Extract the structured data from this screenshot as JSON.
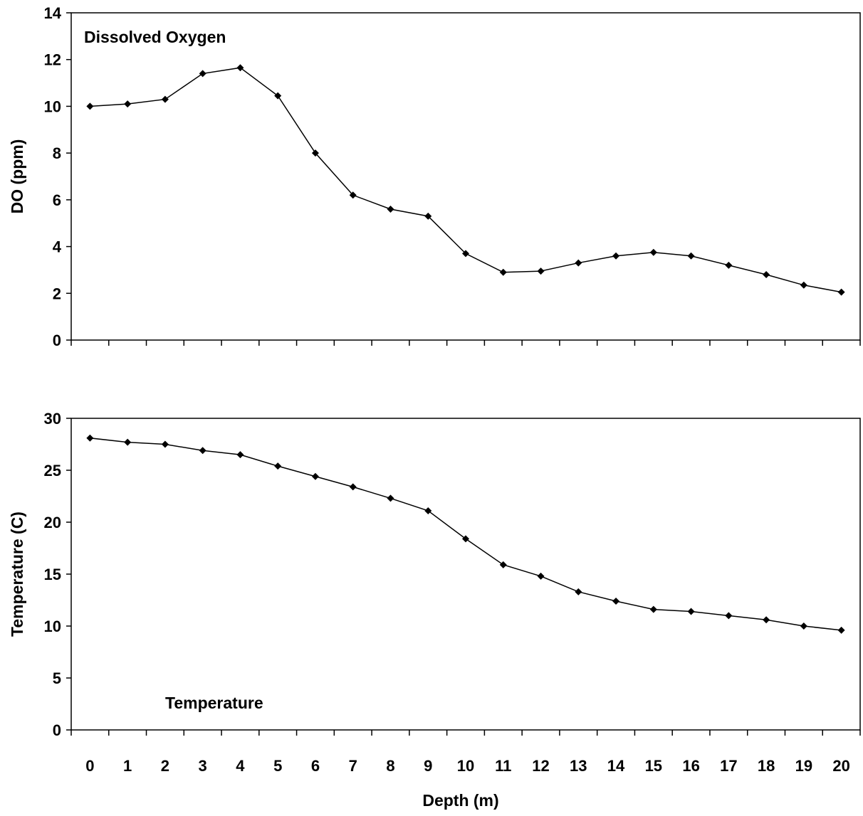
{
  "chart_data": [
    {
      "type": "line",
      "panel_label": "Dissolved Oxygen",
      "ylabel": "DO (ppm)",
      "xlabel": "",
      "ylim": [
        0,
        14
      ],
      "yticks": [
        0,
        2,
        4,
        6,
        8,
        10,
        12,
        14
      ],
      "x": [
        0,
        1,
        2,
        3,
        4,
        5,
        6,
        7,
        8,
        9,
        10,
        11,
        12,
        13,
        14,
        15,
        16,
        17,
        18,
        19,
        20
      ],
      "values": [
        10.0,
        10.1,
        10.3,
        11.4,
        11.65,
        10.45,
        8.0,
        6.2,
        5.6,
        5.3,
        3.7,
        2.9,
        2.95,
        3.3,
        3.6,
        3.75,
        3.6,
        3.2,
        2.8,
        2.35,
        2.05
      ],
      "color": "#000000"
    },
    {
      "type": "line",
      "panel_label": "Temperature",
      "ylabel": "Temperature (C)",
      "xlabel": "Depth (m)",
      "ylim": [
        0,
        30
      ],
      "yticks": [
        0,
        5,
        10,
        15,
        20,
        25,
        30
      ],
      "x": [
        0,
        1,
        2,
        3,
        4,
        5,
        6,
        7,
        8,
        9,
        10,
        11,
        12,
        13,
        14,
        15,
        16,
        17,
        18,
        19,
        20
      ],
      "xtick_labels": [
        "0",
        "1",
        "2",
        "3",
        "4",
        "5",
        "6",
        "7",
        "8",
        "9",
        "10",
        "11",
        "12",
        "13",
        "14",
        "15",
        "16",
        "17",
        "18",
        "19",
        "20"
      ],
      "values": [
        28.1,
        27.7,
        27.5,
        26.9,
        26.5,
        25.4,
        24.4,
        23.4,
        22.3,
        21.1,
        18.4,
        15.9,
        14.8,
        13.3,
        12.4,
        11.6,
        11.4,
        11.0,
        10.6,
        10.0,
        9.6
      ],
      "color": "#000000"
    }
  ]
}
